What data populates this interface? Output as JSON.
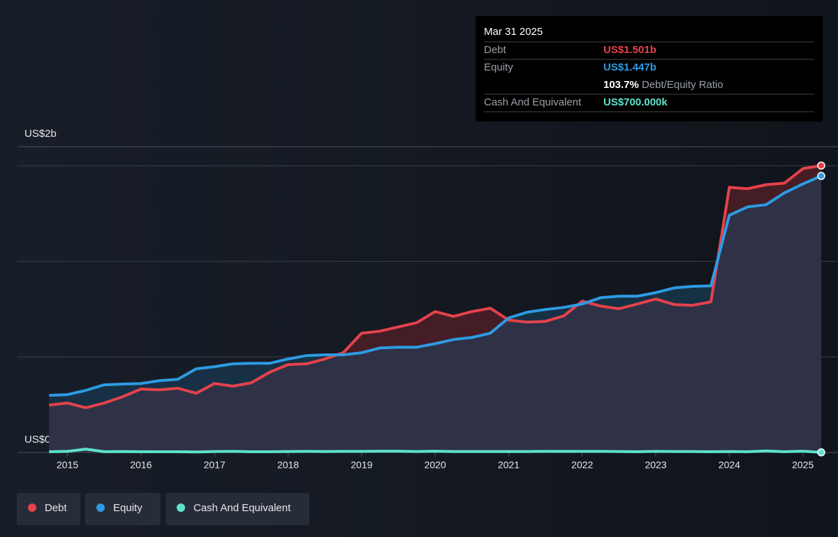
{
  "chart_data": {
    "type": "line",
    "x": [
      2014.75,
      2015,
      2015.25,
      2015.5,
      2015.75,
      2016,
      2016.25,
      2016.5,
      2016.75,
      2017,
      2017.25,
      2017.5,
      2017.75,
      2018,
      2018.25,
      2018.5,
      2018.75,
      2019,
      2019.25,
      2019.5,
      2019.75,
      2020,
      2020.25,
      2020.5,
      2020.75,
      2021,
      2021.25,
      2021.5,
      2021.75,
      2022,
      2022.25,
      2022.5,
      2022.75,
      2023,
      2023.25,
      2023.5,
      2023.75,
      2024,
      2024.25,
      2024.5,
      2024.75,
      2025,
      2025.25
    ],
    "series": [
      {
        "name": "Debt",
        "color": "#e5424b",
        "values": [
          0.248,
          0.259,
          0.234,
          0.259,
          0.292,
          0.332,
          0.328,
          0.336,
          0.31,
          0.361,
          0.347,
          0.365,
          0.42,
          0.46,
          0.464,
          0.489,
          0.522,
          0.624,
          0.635,
          0.657,
          0.679,
          0.737,
          0.712,
          0.737,
          0.755,
          0.693,
          0.682,
          0.686,
          0.715,
          0.792,
          0.766,
          0.752,
          0.777,
          0.803,
          0.774,
          0.77,
          0.788,
          1.387,
          1.38,
          1.401,
          1.409,
          1.485,
          1.501
        ]
      },
      {
        "name": "Equity",
        "color": "#2d9be3",
        "values": [
          0.299,
          0.303,
          0.325,
          0.354,
          0.358,
          0.361,
          0.376,
          0.383,
          0.438,
          0.449,
          0.464,
          0.467,
          0.467,
          0.489,
          0.507,
          0.511,
          0.511,
          0.522,
          0.547,
          0.551,
          0.551,
          0.569,
          0.591,
          0.602,
          0.624,
          0.704,
          0.734,
          0.748,
          0.759,
          0.777,
          0.81,
          0.818,
          0.818,
          0.836,
          0.861,
          0.869,
          0.872,
          1.241,
          1.285,
          1.296,
          1.358,
          1.405,
          1.447
        ]
      },
      {
        "name": "Cash And Equivalent",
        "color": "#5de3cc",
        "values": [
          0.004,
          0.006,
          0.018,
          0.004,
          0.005,
          0.004,
          0.004,
          0.004,
          0.003,
          0.005,
          0.006,
          0.004,
          0.004,
          0.005,
          0.006,
          0.005,
          0.006,
          0.006,
          0.007,
          0.007,
          0.005,
          0.007,
          0.005,
          0.005,
          0.005,
          0.005,
          0.005,
          0.006,
          0.006,
          0.006,
          0.006,
          0.005,
          0.004,
          0.006,
          0.005,
          0.005,
          0.004,
          0.005,
          0.004,
          0.008,
          0.004,
          0.007,
          0.0007
        ]
      }
    ],
    "xlim": [
      2014.32,
      2025.25
    ],
    "xticks": [
      2015,
      2016,
      2017,
      2018,
      2019,
      2020,
      2021,
      2022,
      2023,
      2024,
      2025
    ],
    "ylim": [
      0,
      1.6
    ],
    "yticks": [
      {
        "value": 0,
        "label": "US$0"
      },
      {
        "value": 1.6,
        "label": "US$2b"
      }
    ],
    "gridlines": [
      0.5,
      1,
      1.5,
      1.6
    ],
    "tooltip": {
      "date": "Mar 31 2025",
      "rows": [
        {
          "label": "Debt",
          "value": "US$1.501b"
        },
        {
          "label": "Equity",
          "value": "US$1.447b"
        },
        {
          "label": "Cash And Equivalent",
          "value": "US$700.000k"
        }
      ],
      "ratio": "103.7%",
      "ratio_label": "Debt/Equity Ratio"
    }
  }
}
